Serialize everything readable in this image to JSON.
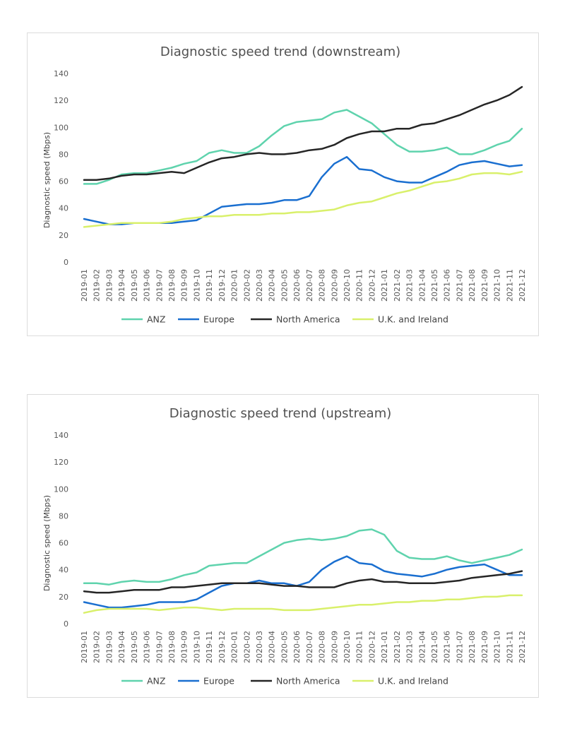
{
  "colors": {
    "ANZ": "#5fd3ad",
    "Europe": "#1a6fd0",
    "North America": "#262626",
    "U.K. and Ireland": "#d9f06b",
    "gridline": "#d9d9d9"
  },
  "chart_data": [
    {
      "type": "line",
      "title": "Diagnostic speed trend (downstream)",
      "xlabel": "",
      "ylabel": "Diagnostic speed (Mbps)",
      "ylim": [
        0,
        140
      ],
      "yticks": [
        0,
        20,
        40,
        60,
        80,
        100,
        120,
        140
      ],
      "grid": false,
      "legend_position": "bottom",
      "x": [
        "2019-01",
        "2019-02",
        "2019-03",
        "2019-04",
        "2019-05",
        "2019-06",
        "2019-07",
        "2019-08",
        "2019-09",
        "2019-10",
        "2019-11",
        "2019-12",
        "2020-01",
        "2020-02",
        "2020-03",
        "2020-04",
        "2020-05",
        "2020-06",
        "2020-07",
        "2020-08",
        "2020-09",
        "2020-10",
        "2020-11",
        "2020-12",
        "2021-01",
        "2021-02",
        "2021-03",
        "2021-04",
        "2021-05",
        "2021-06",
        "2021-07",
        "2021-08",
        "2021-09",
        "2021-10",
        "2021-11",
        "2021-12"
      ],
      "series": [
        {
          "name": "ANZ",
          "values": [
            58,
            58,
            61,
            65,
            66,
            66,
            68,
            70,
            73,
            75,
            81,
            83,
            81,
            81,
            86,
            94,
            101,
            104,
            105,
            106,
            111,
            113,
            108,
            103,
            95,
            87,
            82,
            82,
            83,
            85,
            80,
            80,
            83,
            87,
            90,
            99
          ]
        },
        {
          "name": "Europe",
          "values": [
            32,
            30,
            28,
            28,
            29,
            29,
            29,
            29,
            30,
            31,
            36,
            41,
            42,
            43,
            43,
            44,
            46,
            46,
            49,
            63,
            73,
            78,
            69,
            68,
            63,
            60,
            59,
            59,
            63,
            67,
            72,
            74,
            75,
            73,
            71,
            72
          ]
        },
        {
          "name": "North America",
          "values": [
            61,
            61,
            62,
            64,
            65,
            65,
            66,
            67,
            66,
            70,
            74,
            77,
            78,
            80,
            81,
            80,
            80,
            81,
            83,
            84,
            87,
            92,
            95,
            97,
            97,
            99,
            99,
            102,
            103,
            106,
            109,
            113,
            117,
            120,
            124,
            130
          ]
        },
        {
          "name": "U.K. and Ireland",
          "values": [
            26,
            27,
            28,
            29,
            29,
            29,
            29,
            30,
            32,
            33,
            34,
            34,
            35,
            35,
            35,
            36,
            36,
            37,
            37,
            38,
            39,
            42,
            44,
            45,
            48,
            51,
            53,
            56,
            59,
            60,
            62,
            65,
            66,
            66,
            65,
            67
          ]
        }
      ]
    },
    {
      "type": "line",
      "title": "Diagnostic speed trend (upstream)",
      "xlabel": "",
      "ylabel": "Diagnostic speed (Mbps)",
      "ylim": [
        0,
        140
      ],
      "yticks": [
        0,
        20,
        40,
        60,
        80,
        100,
        120,
        140
      ],
      "grid": false,
      "legend_position": "bottom",
      "x": [
        "2019-01",
        "2019-02",
        "2019-03",
        "2019-04",
        "2019-05",
        "2019-06",
        "2019-07",
        "2019-08",
        "2019-09",
        "2019-10",
        "2019-11",
        "2019-12",
        "2020-01",
        "2020-02",
        "2020-03",
        "2020-04",
        "2020-05",
        "2020-06",
        "2020-07",
        "2020-08",
        "2020-09",
        "2020-10",
        "2020-11",
        "2020-12",
        "2021-01",
        "2021-02",
        "2021-03",
        "2021-04",
        "2021-05",
        "2021-06",
        "2021-07",
        "2021-08",
        "2021-09",
        "2021-10",
        "2021-11",
        "2021-12"
      ],
      "series": [
        {
          "name": "ANZ",
          "values": [
            30,
            30,
            29,
            31,
            32,
            31,
            31,
            33,
            36,
            38,
            43,
            44,
            45,
            45,
            50,
            55,
            60,
            62,
            63,
            62,
            63,
            65,
            69,
            70,
            66,
            54,
            49,
            48,
            48,
            50,
            47,
            45,
            47,
            49,
            51,
            55
          ]
        },
        {
          "name": "Europe",
          "values": [
            16,
            14,
            12,
            12,
            13,
            14,
            16,
            16,
            16,
            18,
            23,
            28,
            30,
            30,
            32,
            30,
            30,
            28,
            31,
            40,
            46,
            50,
            45,
            44,
            39,
            37,
            36,
            35,
            37,
            40,
            42,
            43,
            44,
            40,
            36,
            36
          ]
        },
        {
          "name": "North America",
          "values": [
            24,
            23,
            23,
            24,
            25,
            25,
            25,
            27,
            27,
            28,
            29,
            30,
            30,
            30,
            30,
            29,
            28,
            28,
            27,
            27,
            27,
            30,
            32,
            33,
            31,
            31,
            30,
            30,
            30,
            31,
            32,
            34,
            35,
            36,
            37,
            39
          ]
        },
        {
          "name": "U.K. and Ireland",
          "values": [
            8,
            10,
            11,
            11,
            11,
            11,
            10,
            11,
            12,
            12,
            11,
            10,
            11,
            11,
            11,
            11,
            10,
            10,
            10,
            11,
            12,
            13,
            14,
            14,
            15,
            16,
            16,
            17,
            17,
            18,
            18,
            19,
            20,
            20,
            21,
            21
          ]
        }
      ]
    }
  ]
}
